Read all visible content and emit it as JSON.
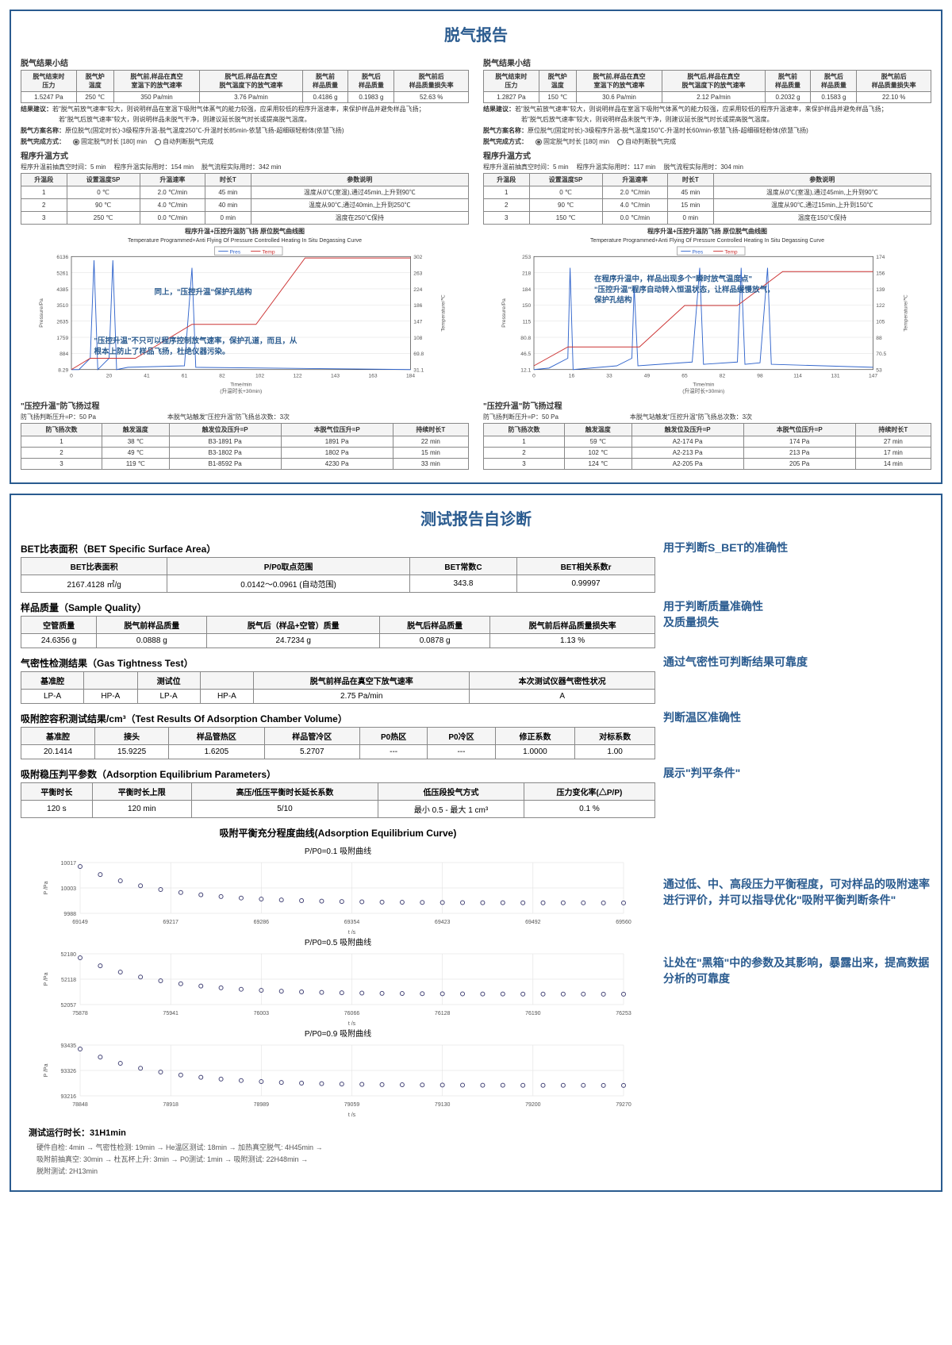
{
  "panel1": {
    "title": "脱气报告",
    "left": {
      "summary_head": "脱气结果小结",
      "hdr": [
        "脱气结束时\n压力",
        "脱气炉\n温度",
        "脱气前,样品在真空\n室温下的放气速率",
        "脱气后,样品在真空\n脱气温度下的放气速率",
        "脱气前\n样品质量",
        "脱气后\n样品质量",
        "脱气前后\n样品质量损失率"
      ],
      "row": [
        "1.5247 Pa",
        "250 ℃",
        "350 Pa/min",
        "3.76 Pa/min",
        "0.4186 g",
        "0.1983 g",
        "52.63 %"
      ],
      "result_label": "结果建议：",
      "result_text1": "若\"脱气前放气速率\"较大，则说明样品在室温下吸附气体蒸气的能力较强，应采用较低的程序升温速率，来保护样品并避免样品飞扬；",
      "result_text2": "若\"脱气后放气速率\"较大，则说明样品未脱气干净，则建议延长脱气时长或提高脱气温度。",
      "plan_label": "脱气方案名称：",
      "plan_text": "原位脱气(固定时长)-3级程序升温-脱气温度250℃-升温时长85min-依慧飞扬-超细碳轻粉体(依慧飞扬)",
      "mode_label": "脱气完成方式：",
      "mode_opt1": "固定脱气时长 [180] min",
      "mode_opt2": "自动判断脱气完成",
      "heat_mode": "程序升温方式",
      "pre_vac": "程序升温前抽真空时间：5 min",
      "heat_time": "程序升温实际用时：154 min",
      "flow_time": "脱气流程实际用时：342 min",
      "step_hdr": [
        "升温段",
        "设置温度SP",
        "升温速率",
        "时长T",
        "参数说明"
      ],
      "steps": [
        [
          "1",
          "0 ℃",
          "2.0 ℃/min",
          "45 min",
          "温度从0℃(室温),通过45min,上升到90℃"
        ],
        [
          "2",
          "90 ℃",
          "4.0 ℃/min",
          "40 min",
          "温度从90℃,通过40min,上升到250℃"
        ],
        [
          "3",
          "250 ℃",
          "0.0 ℃/min",
          "0 min",
          "温度在250℃保持"
        ]
      ],
      "chart_cn": "程序升温+压控升温防飞扬 原位脱气曲线图",
      "chart_en": "Temperature Programmed+Anti Flying Of Pressure Controlled Heating In Situ Degassing Curve",
      "annot1": "同上，\"压控升温\"保护孔结构",
      "annot2": "\"压控升温\"不只可以程序控制放气速率，保护孔道，而且，从根本上防止了样品飞扬，杜绝仪器污染。",
      "y1_ticks": [
        "6136",
        "5261",
        "4385",
        "3510",
        "2635",
        "1759",
        "884",
        "8.29"
      ],
      "y2_ticks": [
        "302",
        "263",
        "224",
        "186",
        "147",
        "108",
        "69.8",
        "31.1"
      ],
      "x_ticks": [
        "0",
        "20",
        "41",
        "61",
        "82",
        "102",
        "122",
        "143",
        "163",
        "184"
      ],
      "x_label": "Time/min",
      "x_sub": "(升温时长+30min)",
      "y1_label": "Pressure/Pa",
      "y2_label": "Temperature/℃",
      "legend_p": "Pres",
      "legend_t": "Temp",
      "anti_head": "\"压控升温\"防飞扬过程",
      "anti_pressure": "防飞扬判断压升=P：50 Pa",
      "anti_station": "本脱气站触发\"压控升温\"防飞扬总次数：3次",
      "anti_hdr": [
        "防飞扬次数",
        "触发温度",
        "触发位及压升=P",
        "本脱气位压升=P",
        "持续时长T"
      ],
      "anti_rows": [
        [
          "1",
          "38 ℃",
          "B3-1891 Pa",
          "1891 Pa",
          "22 min"
        ],
        [
          "2",
          "49 ℃",
          "B3-1802 Pa",
          "1802 Pa",
          "15 min"
        ],
        [
          "3",
          "119 ℃",
          "B1-8592 Pa",
          "4230 Pa",
          "33 min"
        ]
      ]
    },
    "right": {
      "row": [
        "1.2827 Pa",
        "150 ℃",
        "30.6 Pa/min",
        "2.12 Pa/min",
        "0.2032 g",
        "0.1583 g",
        "22.10 %"
      ],
      "plan_text": "原位脱气(固定时长)-3级程序升温-脱气温度150℃-升温时长60/min-依慧飞扬-超细碳轻粉体(依慧飞扬)",
      "heat_time": "程序升温实际用时：117 min",
      "flow_time": "脱气流程实际用时：304 min",
      "steps": [
        [
          "1",
          "0 ℃",
          "2.0 ℃/min",
          "45 min",
          "温度从0℃(室温),通过45min,上升到90℃"
        ],
        [
          "2",
          "90 ℃",
          "4.0 ℃/min",
          "15 min",
          "温度从90℃,通过15min,上升到150℃"
        ],
        [
          "3",
          "150 ℃",
          "0.0 ℃/min",
          "0 min",
          "温度在150℃保持"
        ]
      ],
      "annot1": "在程序升温中，样品出现多个\"瞬时放气温度点\"\n\"压控升温\"程序自动转入恒温状态，让样品缓慢放气，\n保护孔结构",
      "y1_ticks": [
        "253",
        "218",
        "184",
        "150",
        "115",
        "80.8",
        "46.5",
        "12.1"
      ],
      "y2_ticks": [
        "174",
        "156",
        "139",
        "122",
        "105",
        "88",
        "70.5",
        "53"
      ],
      "x_ticks": [
        "0",
        "16",
        "33",
        "49",
        "65",
        "82",
        "98",
        "114",
        "131",
        "147"
      ],
      "anti_rows": [
        [
          "1",
          "59 ℃",
          "A2-174 Pa",
          "174 Pa",
          "27 min"
        ],
        [
          "2",
          "102 ℃",
          "A2-213 Pa",
          "213 Pa",
          "17 min"
        ],
        [
          "3",
          "124 ℃",
          "A2-205 Pa",
          "205 Pa",
          "14 min"
        ]
      ]
    }
  },
  "panel2": {
    "title": "测试报告自诊断",
    "bet": {
      "title": "BET比表面积（BET Specific Surface Area）",
      "hdr": [
        "BET比表面积",
        "P/P0取点范围",
        "BET常数C",
        "BET相关系数r"
      ],
      "row": [
        "2167.4128 ㎡/g",
        "0.0142～0.0961 (自动范围)",
        "343.8",
        "0.99997"
      ],
      "note": "用于判断S_BET的准确性"
    },
    "sample": {
      "title": "样品质量（Sample Quality）",
      "hdr": [
        "空管质量",
        "脱气前样品质量",
        "脱气后（样品+空管）质量",
        "脱气后样品质量",
        "脱气前后样品质量损失率"
      ],
      "row": [
        "24.6356 g",
        "0.0888 g",
        "24.7234 g",
        "0.0878 g",
        "1.13 %"
      ],
      "note": "用于判断质量准确性\n及质量损失"
    },
    "gas": {
      "title": "气密性检测结果（Gas Tightness Test）",
      "hdr": [
        "基准腔",
        "",
        "测试位",
        "",
        "脱气前样品在真空下放气速率",
        "本次测试仪器气密性状况"
      ],
      "row": [
        "LP-A",
        "HP-A",
        "LP-A",
        "HP-A",
        "2.75 Pa/min",
        "A"
      ],
      "note": "通过气密性可判断结果可靠度"
    },
    "vol": {
      "title": "吸附腔容积测试结果/cm³（Test Results Of Adsorption Chamber Volume）",
      "hdr": [
        "基准腔",
        "接头",
        "样品管热区",
        "样品管冷区",
        "P0热区",
        "P0冷区",
        "修正系数",
        "对标系数"
      ],
      "row": [
        "20.1414",
        "15.9225",
        "1.6205",
        "5.2707",
        "---",
        "---",
        "1.0000",
        "1.00"
      ],
      "note": "判断温区准确性"
    },
    "eq": {
      "title": "吸附稳压判平参数（Adsorption Equilibrium Parameters）",
      "hdr": [
        "平衡时长",
        "平衡时长上限",
        "高压/低压平衡时长延长系数",
        "低压段投气方式",
        "压力变化率(△P/P)"
      ],
      "row": [
        "120 s",
        "120 min",
        "5/10",
        "最小 0.5 - 最大 1 cm³",
        "0.1 %"
      ],
      "note": "展示\"判平条件\""
    },
    "curve": {
      "title": "吸附平衡充分程度曲线(Adsorption Equilibrium Curve)",
      "charts": [
        {
          "sub": "P/P0=0.1 吸附曲线",
          "y": [
            "10017",
            "10003",
            "9988"
          ],
          "x": [
            "69149",
            "69217",
            "69286",
            "69354",
            "69423",
            "69492",
            "69560"
          ]
        },
        {
          "sub": "P/P0=0.5 吸附曲线",
          "y": [
            "52180",
            "52118",
            "52057"
          ],
          "x": [
            "75878",
            "75941",
            "76003",
            "76066",
            "76128",
            "76190",
            "76253"
          ]
        },
        {
          "sub": "P/P0=0.9 吸附曲线",
          "y": [
            "93435",
            "93326",
            "93216"
          ],
          "x": [
            "78848",
            "78918",
            "78989",
            "79059",
            "79130",
            "79200",
            "79270"
          ]
        }
      ],
      "x_label": "t /s",
      "y_label": "P /Pa",
      "note": "通过低、中、高段压力平衡程度，可对样品的吸附速率进行评价，并可以指导优化\"吸附平衡判断条件\""
    },
    "blackbox": "让处在\"黑箱\"中的参数及其影响，暴露出来，提高数据分析的可靠度",
    "runtime": {
      "title": "测试运行时长：31H1min",
      "lines": [
        "硬件自检: 4min    →    气密性检测: 19min    →    He温区测试: 18min    →  加热真空脱气: 4H45min   →",
        "吸附前抽真空: 30min    →    杜瓦杯上升: 3min    →    P0测试: 1min    →    吸附测试: 22H48min   →",
        "脱附测试: 2H13min"
      ]
    }
  }
}
